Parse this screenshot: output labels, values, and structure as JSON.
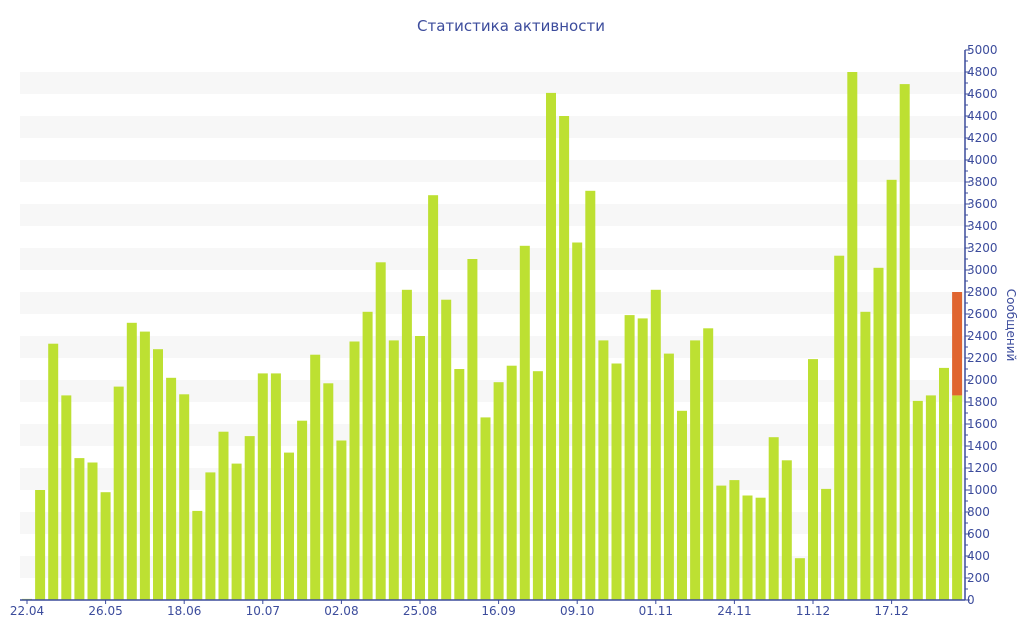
{
  "chart_data": {
    "type": "bar",
    "title": "Статистика активности",
    "xlabel": "",
    "ylabel": "Сообщений",
    "ylim": [
      0,
      5000
    ],
    "y_ticks": [
      0,
      200,
      400,
      600,
      800,
      1000,
      1200,
      1400,
      1600,
      1800,
      2000,
      2200,
      2400,
      2600,
      2800,
      3000,
      3200,
      3400,
      3600,
      3800,
      4000,
      4200,
      4400,
      4600,
      4800,
      5000
    ],
    "y_axis_position": "right",
    "x_tick_labels": [
      {
        "index": 0,
        "label": "22.04"
      },
      {
        "index": 6,
        "label": "26.05"
      },
      {
        "index": 12,
        "label": "18.06"
      },
      {
        "index": 18,
        "label": "10.07"
      },
      {
        "index": 24,
        "label": "02.08"
      },
      {
        "index": 30,
        "label": "25.08"
      },
      {
        "index": 36,
        "label": "16.09"
      },
      {
        "index": 42,
        "label": "09.10"
      },
      {
        "index": 48,
        "label": "01.11"
      },
      {
        "index": 54,
        "label": "24.11"
      },
      {
        "index": 60,
        "label": "11.12"
      },
      {
        "index": 66,
        "label": "17.12"
      }
    ],
    "series": [
      {
        "name": "messages",
        "color": "#bde032",
        "values": [
          10,
          1000,
          2330,
          1860,
          1290,
          1250,
          980,
          1940,
          2520,
          2440,
          2280,
          2020,
          1870,
          810,
          1160,
          1530,
          1240,
          1490,
          2060,
          2060,
          1340,
          1630,
          2230,
          1970,
          1450,
          2350,
          2620,
          3070,
          2360,
          2820,
          2400,
          3680,
          2730,
          2100,
          3100,
          1660,
          1980,
          2130,
          3220,
          2080,
          4610,
          4400,
          3250,
          3720,
          2360,
          2150,
          2590,
          2560,
          2820,
          2240,
          1720,
          2360,
          2470,
          1040,
          1090,
          950,
          930,
          1480,
          1270,
          380,
          2190,
          1010,
          3130,
          4800,
          2620,
          3020,
          3820,
          4690,
          1810,
          1860,
          2110,
          1860
        ]
      },
      {
        "name": "current",
        "color": "#e06530",
        "values": [
          0,
          0,
          0,
          0,
          0,
          0,
          0,
          0,
          0,
          0,
          0,
          0,
          0,
          0,
          0,
          0,
          0,
          0,
          0,
          0,
          0,
          0,
          0,
          0,
          0,
          0,
          0,
          0,
          0,
          0,
          0,
          0,
          0,
          0,
          0,
          0,
          0,
          0,
          0,
          0,
          0,
          0,
          0,
          0,
          0,
          0,
          0,
          0,
          0,
          0,
          0,
          0,
          0,
          0,
          0,
          0,
          0,
          0,
          0,
          0,
          0,
          0,
          0,
          0,
          0,
          0,
          0,
          0,
          0,
          0,
          0,
          940
        ]
      }
    ],
    "stacked": true,
    "grid": "alternating horizontal bands",
    "legend": "none",
    "axis_color": "#3c4c9c",
    "band_color": "#f7f7f7"
  }
}
